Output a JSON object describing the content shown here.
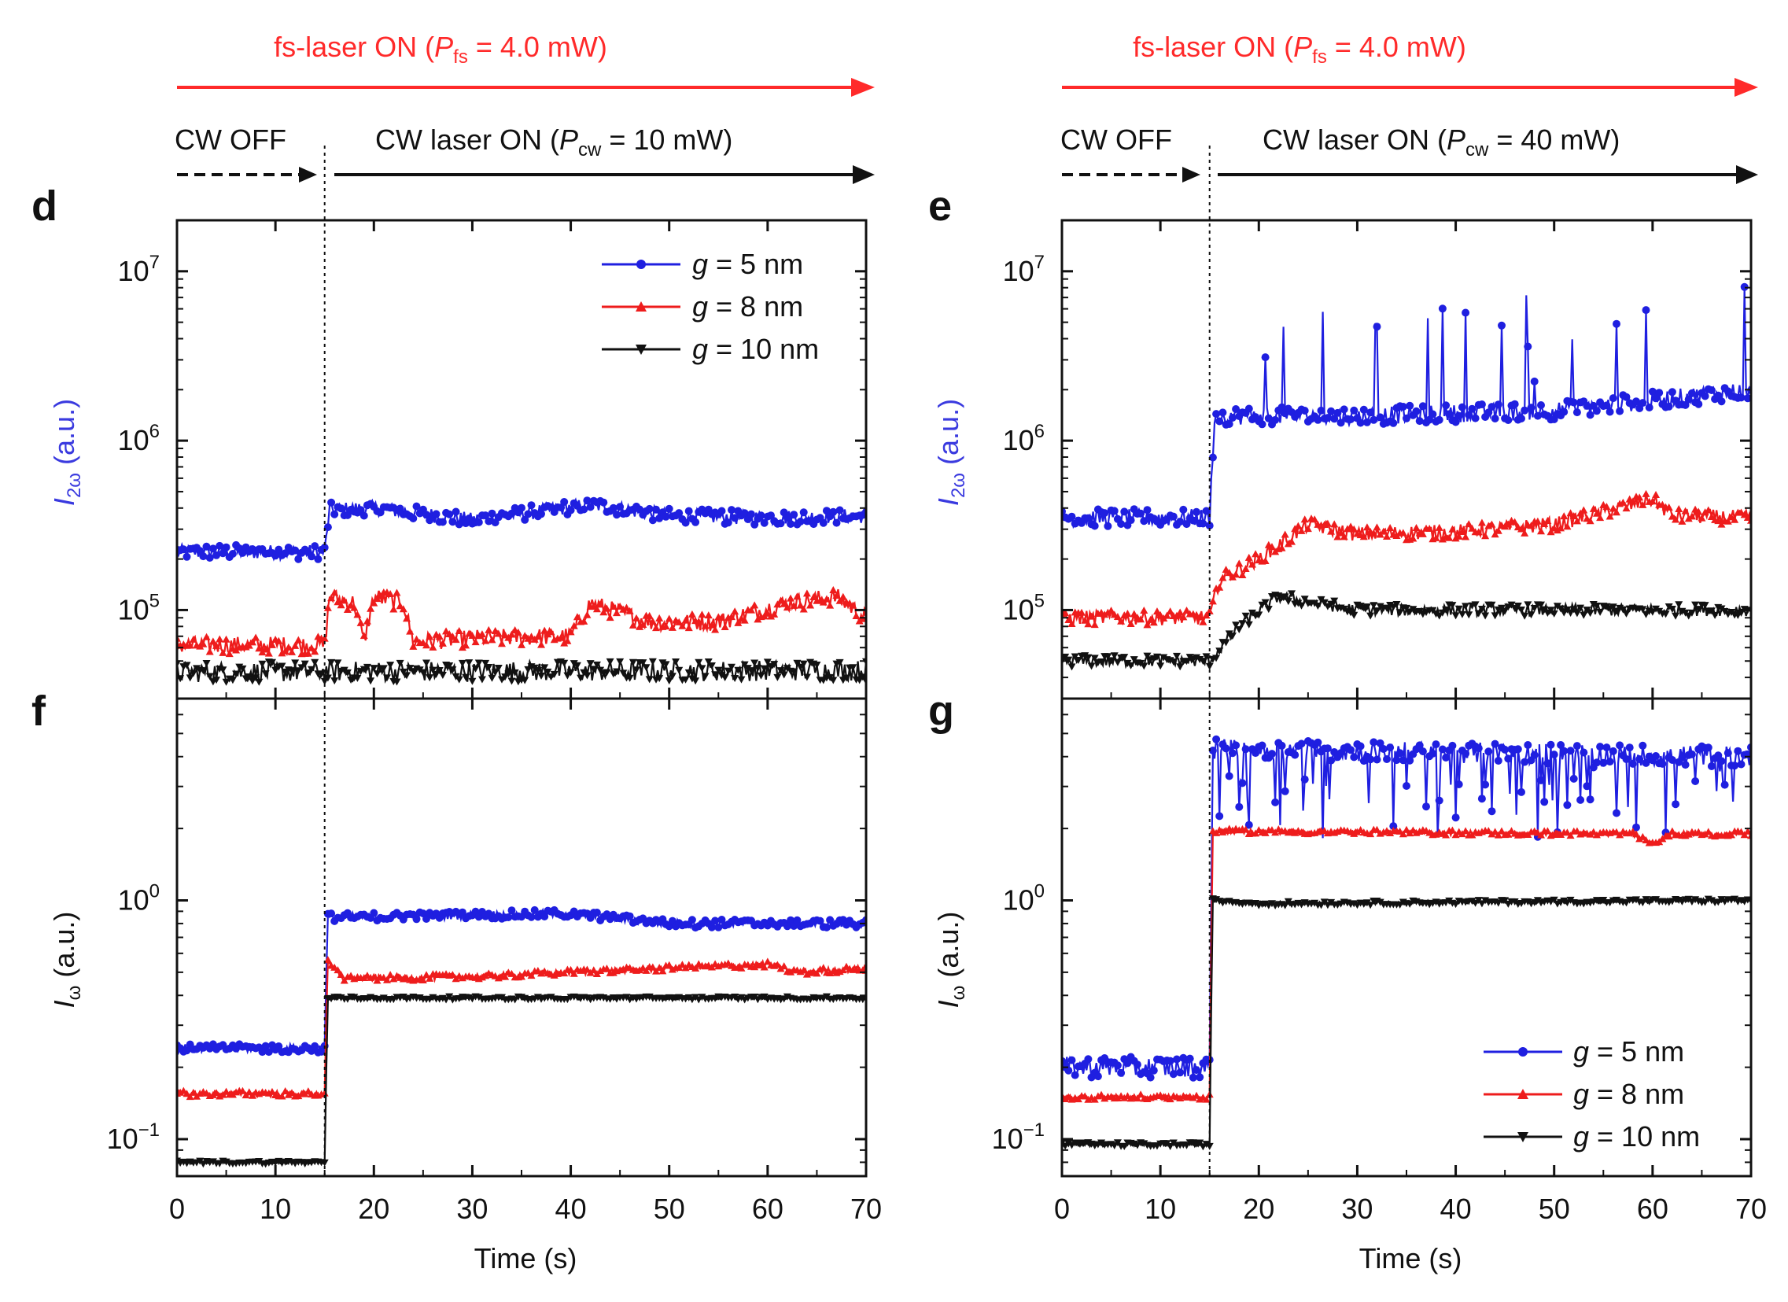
{
  "figure": {
    "fs_annotation": {
      "prefix": "fs-laser ON (",
      "P": "P",
      "sub": "fs",
      "suffix": " = 4.0 mW)"
    },
    "cw_off_label": "CW OFF",
    "colors": {
      "g5": "#1f1fe0",
      "g8": "#ee1c1c",
      "g10": "#111111",
      "fs_arrow": "#ff2a2a"
    }
  },
  "panels": {
    "d": {
      "letter": "d",
      "cw_on": {
        "prefix": "CW laser ON (",
        "P": "P",
        "sub": "cw",
        "suffix": " = 10 mW)"
      }
    },
    "e": {
      "letter": "e",
      "cw_on": {
        "prefix": "CW laser ON (",
        "P": "P",
        "sub": "cw",
        "suffix": " = 40 mW)"
      }
    },
    "f": {
      "letter": "f"
    },
    "g": {
      "letter": "g"
    }
  },
  "axes": {
    "top_ylabel": {
      "I": "I",
      "sub": "2ω",
      "unit": " (a.u.)"
    },
    "bottom_ylabel": {
      "I": "I",
      "sub": "ω",
      "unit": " (a.u.)"
    },
    "xlabel": "Time (s)",
    "top_yticks": [
      {
        "base": "10",
        "exp": "5",
        "value": 100000
      },
      {
        "base": "10",
        "exp": "6",
        "value": 1000000
      },
      {
        "base": "10",
        "exp": "7",
        "value": 10000000
      }
    ],
    "bottom_yticks": [
      {
        "base": "10",
        "exp": "−1",
        "value": 0.1
      },
      {
        "base": "10",
        "exp": "0",
        "value": 1
      }
    ]
  },
  "legend": [
    {
      "key": "g5",
      "g": "g",
      "text": " = 5 nm",
      "marker": "circle"
    },
    {
      "key": "g8",
      "g": "g",
      "text": " = 8 nm",
      "marker": "triangle-up"
    },
    {
      "key": "g10",
      "g": "g",
      "text": " = 10 nm",
      "marker": "triangle-down"
    }
  ],
  "chart_data": [
    {
      "panel": "d",
      "type": "line",
      "xlabel": "Time (s)",
      "ylabel": "I2ω (a.u.)",
      "yscale": "log",
      "xlim": [
        0,
        70
      ],
      "ylim": [
        30000,
        20000000
      ],
      "xticks": [
        0,
        10,
        20,
        30,
        40,
        50,
        60,
        70
      ],
      "cw_on_time": 15,
      "series": [
        {
          "name": "g = 5 nm",
          "key": "g5",
          "levels": [
            [
              0,
              220000
            ],
            [
              15,
              220000
            ],
            [
              15.5,
              390000
            ],
            [
              20,
              400000
            ],
            [
              30,
              340000
            ],
            [
              42,
              420000
            ],
            [
              50,
              360000
            ],
            [
              60,
              350000
            ],
            [
              70,
              360000
            ]
          ],
          "noise": 0.1,
          "spikes": 0
        },
        {
          "name": "g = 8 nm",
          "key": "g8",
          "levels": [
            [
              0,
              62000
            ],
            [
              15,
              62000
            ],
            [
              15.5,
              120000
            ],
            [
              18,
              110000
            ],
            [
              19,
              65000
            ],
            [
              20,
              120000
            ],
            [
              23,
              110000
            ],
            [
              24,
              65000
            ],
            [
              30,
              68000
            ],
            [
              40,
              70000
            ],
            [
              42,
              110000
            ],
            [
              48,
              85000
            ],
            [
              55,
              85000
            ],
            [
              62,
              110000
            ],
            [
              67,
              120000
            ],
            [
              70,
              90000
            ]
          ],
          "noise": 0.12,
          "spikes": 0
        },
        {
          "name": "g = 10 nm",
          "key": "g10",
          "levels": [
            [
              0,
              43000
            ],
            [
              70,
              44000
            ]
          ],
          "noise": 0.14,
          "spikes": 0
        }
      ]
    },
    {
      "panel": "e",
      "type": "line",
      "xlabel": "Time (s)",
      "ylabel": "I2ω (a.u.)",
      "yscale": "log",
      "xlim": [
        0,
        70
      ],
      "ylim": [
        30000,
        20000000
      ],
      "xticks": [
        0,
        10,
        20,
        30,
        40,
        50,
        60,
        70
      ],
      "cw_on_time": 15,
      "series": [
        {
          "name": "g = 5 nm",
          "key": "g5",
          "levels": [
            [
              0,
              350000
            ],
            [
              15,
              350000
            ],
            [
              15.5,
              1400000
            ],
            [
              30,
              1400000
            ],
            [
              50,
              1500000
            ],
            [
              70,
              2000000
            ]
          ],
          "noise": 0.12,
          "spikes": 0.06
        },
        {
          "name": "g = 8 nm",
          "key": "g8",
          "levels": [
            [
              0,
              90000
            ],
            [
              15,
              90000
            ],
            [
              16,
              150000
            ],
            [
              20,
              200000
            ],
            [
              25,
              320000
            ],
            [
              30,
              280000
            ],
            [
              40,
              290000
            ],
            [
              50,
              320000
            ],
            [
              60,
              450000
            ],
            [
              62,
              360000
            ],
            [
              70,
              350000
            ]
          ],
          "noise": 0.1,
          "spikes": 0
        },
        {
          "name": "g = 10 nm",
          "key": "g10",
          "levels": [
            [
              0,
              50000
            ],
            [
              15,
              50000
            ],
            [
              18,
              80000
            ],
            [
              22,
              120000
            ],
            [
              30,
              100000
            ],
            [
              50,
              100000
            ],
            [
              70,
              100000
            ]
          ],
          "noise": 0.08,
          "spikes": 0
        }
      ]
    },
    {
      "panel": "f",
      "type": "line",
      "xlabel": "Time (s)",
      "ylabel": "Iω (a.u.)",
      "yscale": "log",
      "xlim": [
        0,
        70
      ],
      "ylim": [
        0.07,
        7
      ],
      "xticks": [
        0,
        10,
        20,
        30,
        40,
        50,
        60,
        70
      ],
      "cw_on_time": 15,
      "series": [
        {
          "name": "g = 5 nm",
          "key": "g5",
          "levels": [
            [
              0,
              0.24
            ],
            [
              15,
              0.24
            ],
            [
              15.3,
              0.85
            ],
            [
              40,
              0.88
            ],
            [
              50,
              0.8
            ],
            [
              70,
              0.8
            ]
          ],
          "noise": 0.04,
          "spikes": 0
        },
        {
          "name": "g = 8 nm",
          "key": "g8",
          "levels": [
            [
              0,
              0.155
            ],
            [
              15,
              0.155
            ],
            [
              15.3,
              0.55
            ],
            [
              17,
              0.47
            ],
            [
              30,
              0.48
            ],
            [
              50,
              0.52
            ],
            [
              60,
              0.54
            ],
            [
              63,
              0.5
            ],
            [
              70,
              0.52
            ]
          ],
          "noise": 0.03,
          "spikes": 0
        },
        {
          "name": "g = 10 nm",
          "key": "g10",
          "levels": [
            [
              0,
              0.08
            ],
            [
              15,
              0.08
            ],
            [
              15.3,
              0.39
            ],
            [
              70,
              0.39
            ]
          ],
          "noise": 0.015,
          "spikes": 0
        }
      ]
    },
    {
      "panel": "g",
      "type": "line",
      "xlabel": "Time (s)",
      "ylabel": "Iω (a.u.)",
      "yscale": "log",
      "xlim": [
        0,
        70
      ],
      "ylim": [
        0.07,
        7
      ],
      "xticks": [
        0,
        10,
        20,
        30,
        40,
        50,
        60,
        70
      ],
      "cw_on_time": 15,
      "series": [
        {
          "name": "g = 5 nm",
          "key": "g5",
          "levels": [
            [
              0,
              0.2
            ],
            [
              15,
              0.2
            ],
            [
              15.3,
              4.3
            ],
            [
              70,
              4.0
            ]
          ],
          "noise": 0.1,
          "spikes": -0.12
        },
        {
          "name": "g = 8 nm",
          "key": "g8",
          "levels": [
            [
              0,
              0.15
            ],
            [
              15,
              0.15
            ],
            [
              15.3,
              1.95
            ],
            [
              58,
              1.9
            ],
            [
              60,
              1.75
            ],
            [
              62,
              1.9
            ],
            [
              70,
              1.9
            ]
          ],
          "noise": 0.025,
          "spikes": 0
        },
        {
          "name": "g = 10 nm",
          "key": "g10",
          "levels": [
            [
              0,
              0.095
            ],
            [
              15,
              0.095
            ],
            [
              15.3,
              1.0
            ],
            [
              20,
              0.97
            ],
            [
              70,
              1.0
            ]
          ],
          "noise": 0.02,
          "spikes": 0
        }
      ]
    }
  ]
}
